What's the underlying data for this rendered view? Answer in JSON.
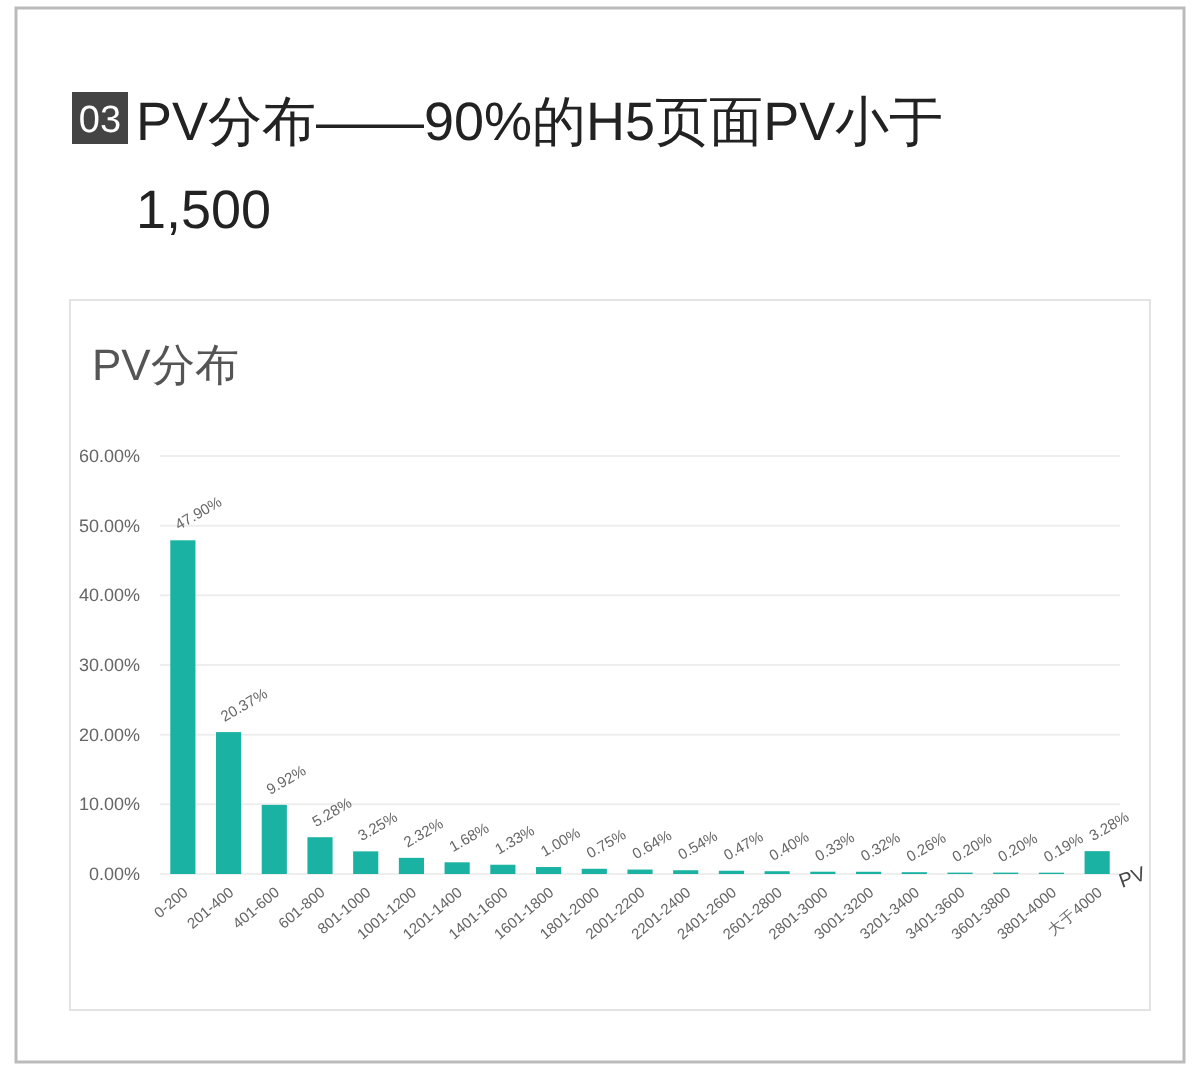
{
  "chart_data": {
    "type": "bar",
    "title": "PV分布——90%的H5页面PV小于 1,500",
    "subtitle": "PV分布",
    "xlabel": "PV",
    "annotations": [
      "03"
    ],
    "categories": [
      "0-200",
      "201-400",
      "401-600",
      "601-800",
      "801-1000",
      "1001-1200",
      "1201-1400",
      "1401-1600",
      "1601-1800",
      "1801-2000",
      "2001-2200",
      "2201-2400",
      "2401-2600",
      "2601-2800",
      "2801-3000",
      "3001-3200",
      "3201-3400",
      "3401-3600",
      "3601-3800",
      "3801-4000",
      "大于4000"
    ],
    "values": [
      47.9,
      20.37,
      9.92,
      5.28,
      3.25,
      2.32,
      1.68,
      1.33,
      1.0,
      0.75,
      0.64,
      0.54,
      0.47,
      0.4,
      0.33,
      0.32,
      0.26,
      0.2,
      0.2,
      0.19,
      3.28
    ],
    "value_labels": [
      "47.90%",
      "20.37%",
      "9.92%",
      "5.28%",
      "3.25%",
      "2.32%",
      "1.68%",
      "1.33%",
      "1.00%",
      "0.75%",
      "0.64%",
      "0.54%",
      "0.47%",
      "0.40%",
      "0.33%",
      "0.32%",
      "0.26%",
      "0.20%",
      "0.20%",
      "0.19%",
      "3.28%"
    ],
    "color": "#1ab3a3",
    "ylim": [
      0,
      60
    ],
    "yticks": [
      {
        "value": 0,
        "label": "0.00%"
      },
      {
        "value": 10,
        "label": "10.00%"
      },
      {
        "value": 20,
        "label": "20.00%"
      },
      {
        "value": 30,
        "label": "30.00%"
      },
      {
        "value": 40,
        "label": "40.00%"
      },
      {
        "value": 50,
        "label": "50.00%"
      },
      {
        "value": 60,
        "label": "60.00%"
      }
    ],
    "grid": "y"
  }
}
